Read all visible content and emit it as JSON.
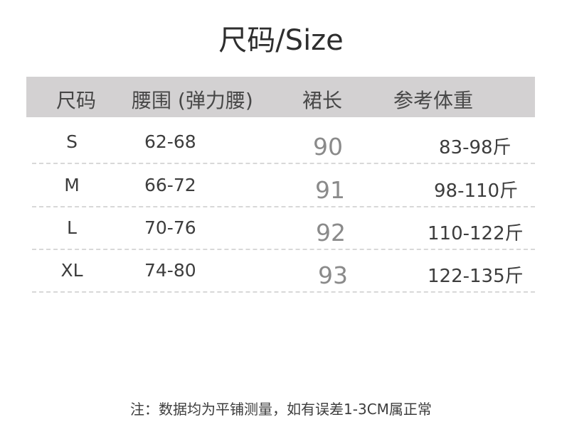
{
  "title": "尺码/Size",
  "table": {
    "headers": [
      "尺码",
      "腰围 (弹力腰)",
      "裙长",
      "参考体重"
    ],
    "rows": [
      {
        "size": "S",
        "waist": "62-68",
        "length": "90",
        "weight": "83-98斤"
      },
      {
        "size": "M",
        "waist": "66-72",
        "length": "91",
        "weight": "98-110斤"
      },
      {
        "size": "L",
        "waist": "70-76",
        "length": "92",
        "weight": "110-122斤"
      },
      {
        "size": "XL",
        "waist": "74-80",
        "length": "93",
        "weight": "122-135斤"
      }
    ]
  },
  "note": "注：数据均为平铺测量，如有误差1-3CM属正常",
  "colors": {
    "header_bg": "#d3d1d2",
    "length_text": "#8a8a8a",
    "text": "#3d3d3d"
  }
}
